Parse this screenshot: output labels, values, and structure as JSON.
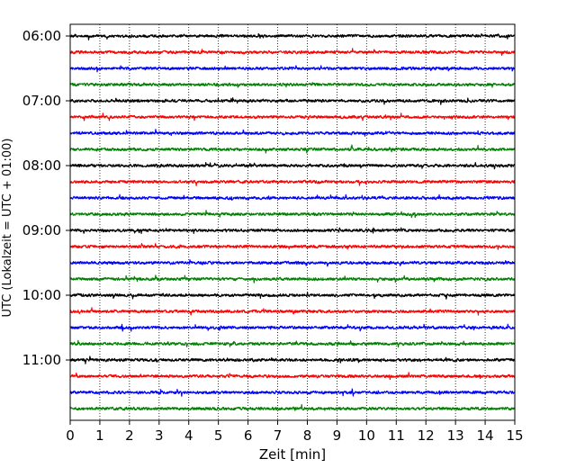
{
  "chart_data": {
    "type": "line",
    "chart_kind": "helicorder (seismogram drum plot)",
    "title": "",
    "xlabel": "Zeit  [min]",
    "ylabel": "UTC (Lokalzeit = UTC + 01:00)",
    "xlim": [
      0,
      15
    ],
    "x_ticks": [
      "0",
      "1",
      "2",
      "3",
      "4",
      "5",
      "6",
      "7",
      "8",
      "9",
      "10",
      "11",
      "12",
      "13",
      "14",
      "15"
    ],
    "y_ticks": [
      "06:00",
      "07:00",
      "08:00",
      "09:00",
      "10:00",
      "11:00"
    ],
    "trace_interval_minutes": 15,
    "trace_start": "06:00",
    "trace_count": 24,
    "trace_colors": [
      "#000000",
      "#ff0000",
      "#0000ff",
      "#008000"
    ],
    "grid": "vertical dotted lines at each minute",
    "legend": "none"
  }
}
